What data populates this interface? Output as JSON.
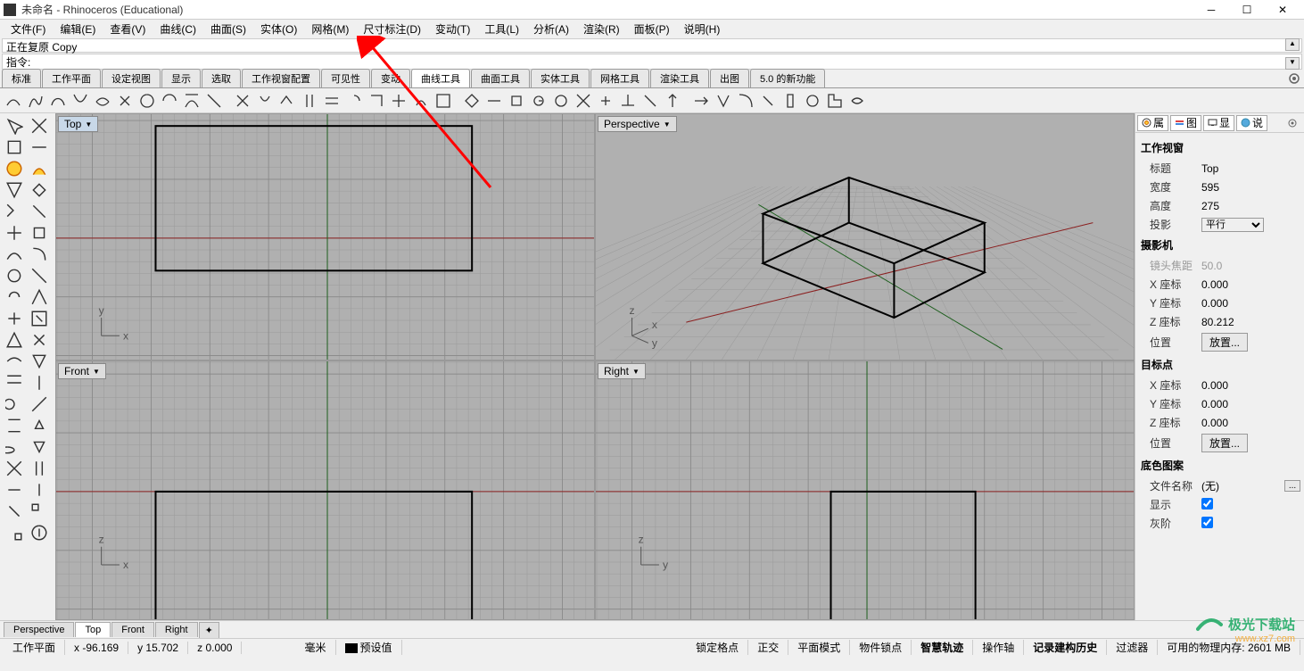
{
  "window": {
    "title": "未命名 - Rhinoceros (Educational)"
  },
  "menu": {
    "items": [
      "文件(F)",
      "编辑(E)",
      "查看(V)",
      "曲线(C)",
      "曲面(S)",
      "实体(O)",
      "网格(M)",
      "尺寸标注(D)",
      "变动(T)",
      "工具(L)",
      "分析(A)",
      "渲染(R)",
      "面板(P)",
      "说明(H)"
    ]
  },
  "history": {
    "text": "正在复原 Copy"
  },
  "command": {
    "prompt": "指令:"
  },
  "tabs": {
    "items": [
      "标准",
      "工作平面",
      "设定视图",
      "显示",
      "选取",
      "工作视窗配置",
      "可见性",
      "变动",
      "曲线工具",
      "曲面工具",
      "实体工具",
      "网格工具",
      "渲染工具",
      "出图",
      "5.0 的新功能"
    ],
    "active_index": 8
  },
  "viewports": {
    "top": {
      "label": "Top"
    },
    "perspective": {
      "label": "Perspective"
    },
    "front": {
      "label": "Front"
    },
    "right": {
      "label": "Right"
    }
  },
  "properties": {
    "tab1": "属",
    "tab2": "图",
    "tab3": "显",
    "tab4": "说",
    "section1": "工作视窗",
    "title_label": "标题",
    "title_value": "Top",
    "width_label": "宽度",
    "width_value": "595",
    "height_label": "高度",
    "height_value": "275",
    "projection_label": "投影",
    "projection_value": "平行",
    "section2": "摄影机",
    "focal_label": "镜头焦距",
    "focal_value": "50.0",
    "cam_x_label": "X 座标",
    "cam_x_value": "0.000",
    "cam_y_label": "Y 座标",
    "cam_y_value": "0.000",
    "cam_z_label": "Z 座标",
    "cam_z_value": "80.212",
    "cam_pos_label": "位置",
    "cam_pos_btn": "放置...",
    "section3": "目标点",
    "tgt_x_label": "X 座标",
    "tgt_x_value": "0.000",
    "tgt_y_label": "Y 座标",
    "tgt_y_value": "0.000",
    "tgt_z_label": "Z 座标",
    "tgt_z_value": "0.000",
    "tgt_pos_label": "位置",
    "tgt_pos_btn": "放置...",
    "section4": "底色图案",
    "file_label": "文件名称",
    "file_value": "(无)",
    "show_label": "显示",
    "gray_label": "灰阶"
  },
  "bottomtabs": {
    "items": [
      "Perspective",
      "Top",
      "Front",
      "Right"
    ],
    "active_index": 1
  },
  "status": {
    "cplane": "工作平面",
    "x": "x -96.169",
    "y": "y 15.702",
    "z": "z 0.000",
    "unit": "毫米",
    "layer": "预设值",
    "gridsnap": "锁定格点",
    "ortho": "正交",
    "planar": "平面模式",
    "osnap": "物件锁点",
    "smarttrack": "智慧轨迹",
    "gumball": "操作轴",
    "history": "记录建构历史",
    "filter": "过滤器",
    "memory": "可用的物理内存: 2601 MB"
  },
  "watermark": {
    "name": "极光下载站",
    "url": "www.xz7.com"
  },
  "colors": {
    "grid_bg": "#b0b0b0",
    "grid_minor": "#9a9a9a",
    "grid_major": "#888888",
    "x_axis": "#8b2020",
    "y_axis": "#206020",
    "geom": "#000000"
  }
}
